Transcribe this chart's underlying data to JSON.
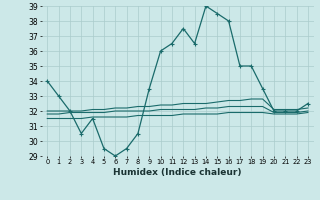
{
  "xlabel": "Humidex (Indice chaleur)",
  "x": [
    0,
    1,
    2,
    3,
    4,
    5,
    6,
    7,
    8,
    9,
    10,
    11,
    12,
    13,
    14,
    15,
    16,
    17,
    18,
    19,
    20,
    21,
    22,
    23
  ],
  "line_main": [
    34,
    33,
    32,
    30.5,
    31.5,
    29.5,
    29,
    29.5,
    30.5,
    33.5,
    36,
    36.5,
    37.5,
    36.5,
    39,
    38.5,
    38,
    35,
    35,
    33.5,
    32,
    32,
    32,
    32.5
  ],
  "band1": [
    32.0,
    32.0,
    32.0,
    32.0,
    32.1,
    32.1,
    32.2,
    32.2,
    32.3,
    32.3,
    32.4,
    32.4,
    32.5,
    32.5,
    32.5,
    32.6,
    32.7,
    32.7,
    32.8,
    32.8,
    32.1,
    32.1,
    32.1,
    32.2
  ],
  "band2": [
    31.8,
    31.8,
    31.9,
    31.9,
    31.9,
    31.9,
    32.0,
    32.0,
    32.0,
    32.0,
    32.1,
    32.1,
    32.1,
    32.1,
    32.2,
    32.2,
    32.3,
    32.3,
    32.3,
    32.3,
    31.9,
    31.9,
    31.9,
    32.0
  ],
  "band3": [
    31.5,
    31.5,
    31.5,
    31.5,
    31.6,
    31.6,
    31.6,
    31.6,
    31.7,
    31.7,
    31.7,
    31.7,
    31.8,
    31.8,
    31.8,
    31.8,
    31.9,
    31.9,
    31.9,
    31.9,
    31.8,
    31.8,
    31.8,
    31.9
  ],
  "ylim": [
    29,
    39
  ],
  "yticks": [
    29,
    30,
    31,
    32,
    33,
    34,
    35,
    36,
    37,
    38,
    39
  ],
  "xticks": [
    0,
    1,
    2,
    3,
    4,
    5,
    6,
    7,
    8,
    9,
    10,
    11,
    12,
    13,
    14,
    15,
    16,
    17,
    18,
    19,
    20,
    21,
    22,
    23
  ],
  "bg_color": "#cce8e8",
  "line_color": "#1a6b6b",
  "grid_color": "#aacccc"
}
